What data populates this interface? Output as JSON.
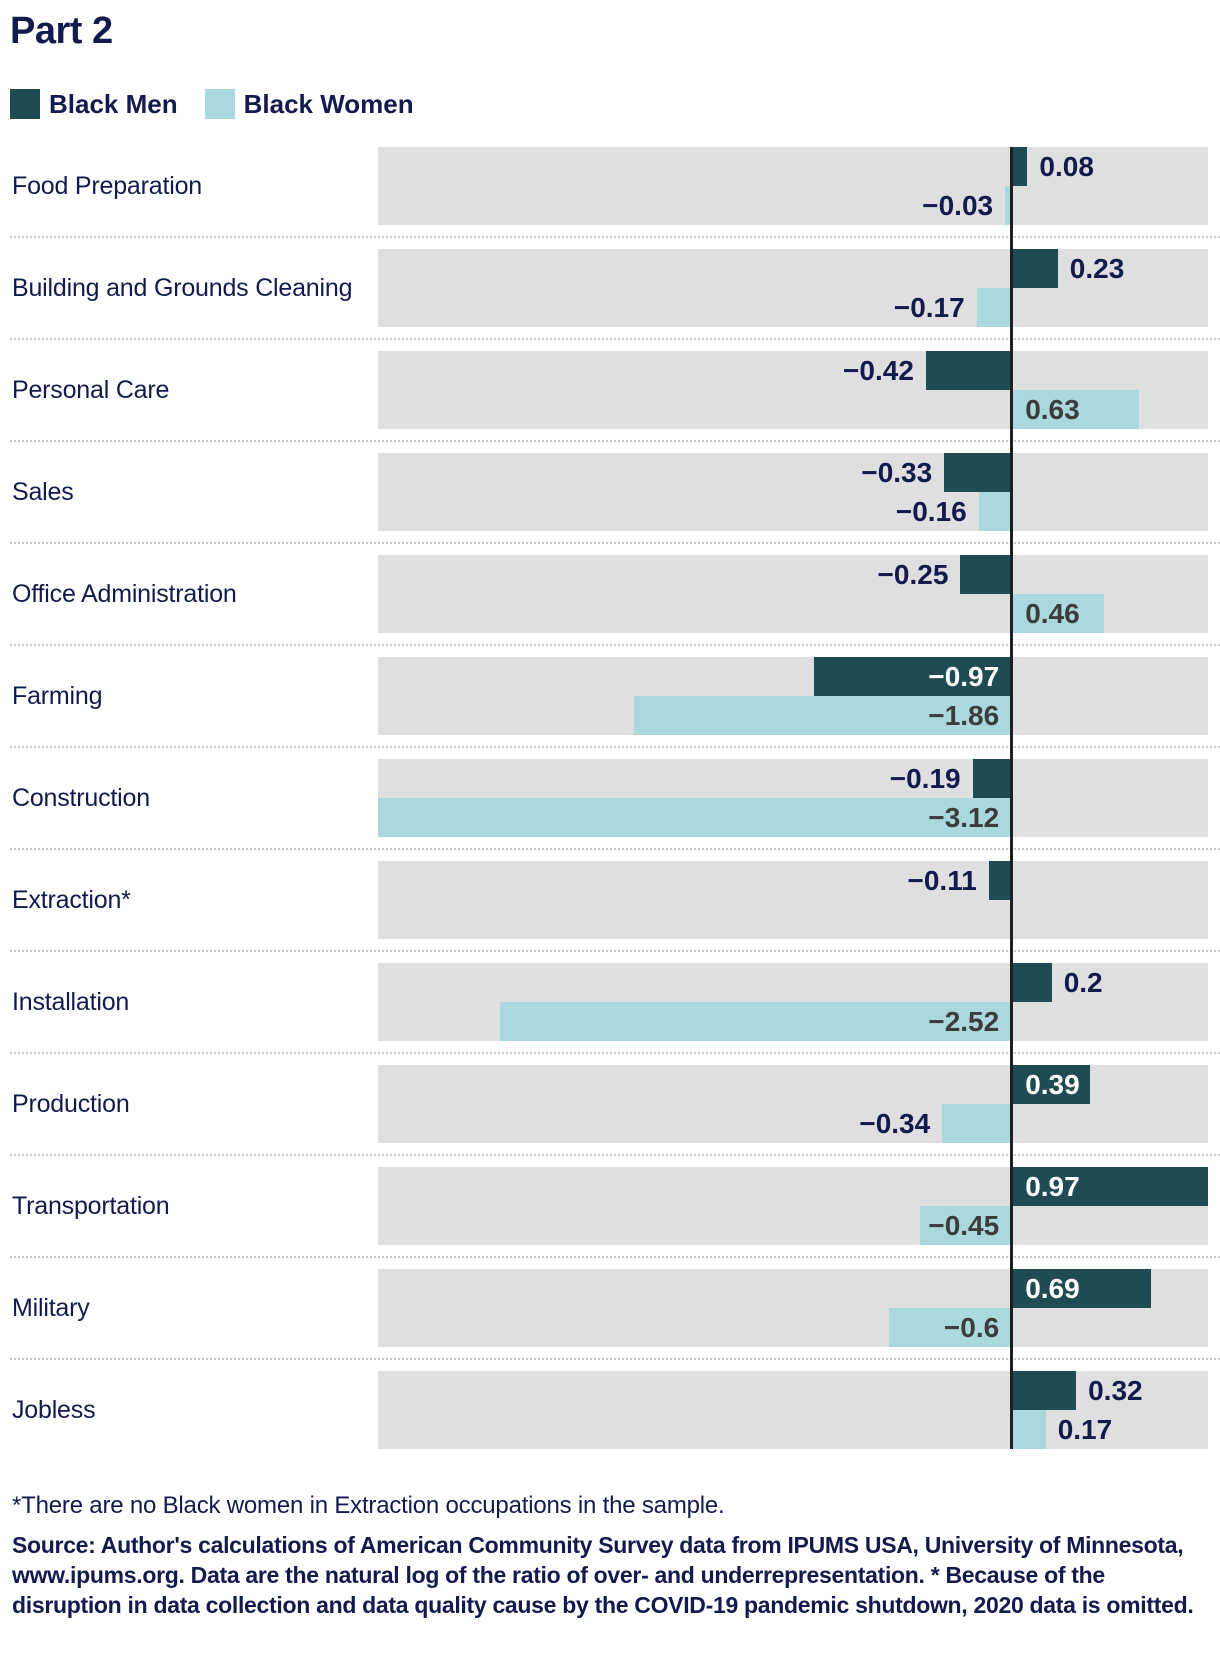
{
  "title": "Part 2",
  "legend": {
    "position": "top-left",
    "items": [
      {
        "label": "Black Men",
        "color": "#1F4B52"
      },
      {
        "label": "Black Women",
        "color": "#A9D9DD"
      }
    ]
  },
  "chart_data": {
    "type": "bar",
    "orientation": "horizontal-diverging",
    "title": "Part 2",
    "xlabel": "",
    "ylabel": "",
    "xlim": [
      -3.12,
      0.97
    ],
    "grid": "off",
    "zero_line": true,
    "row_background_color": "#DFDFDF",
    "categories": [
      "Food Preparation",
      "Building and Grounds Cleaning",
      "Personal Care",
      "Sales",
      "Office Administration",
      "Farming",
      "Construction",
      "Extraction*",
      "Installation",
      "Production",
      "Transportation",
      "Military",
      "Jobless"
    ],
    "series": [
      {
        "name": "Black Men",
        "color": "#1F4B52",
        "values": [
          0.08,
          0.23,
          -0.42,
          -0.33,
          -0.25,
          -0.97,
          -0.19,
          -0.11,
          0.2,
          0.39,
          0.97,
          0.69,
          0.32
        ],
        "labels_inside": [
          false,
          false,
          false,
          false,
          false,
          true,
          false,
          false,
          false,
          true,
          true,
          true,
          false
        ],
        "inside_label_color": "#FFFFFF"
      },
      {
        "name": "Black Women",
        "color": "#A9D9DD",
        "values": [
          -0.03,
          -0.17,
          0.63,
          -0.16,
          0.46,
          -1.86,
          -3.12,
          null,
          -2.52,
          -0.34,
          -0.45,
          -0.6,
          0.17
        ],
        "labels_inside": [
          false,
          false,
          true,
          false,
          true,
          true,
          true,
          false,
          true,
          false,
          true,
          true,
          false
        ],
        "inside_label_color": "#3C3C3C"
      }
    ],
    "outside_label_color": "#131A4E"
  },
  "footnotes": {
    "asterisk": "*There are no Black women in Extraction occupations in the sample.",
    "source": "Source: Author's calculations of American Community Survey data from IPUMS USA, University of Minnesota, www.ipums.org. Data are the natural log of the ratio of over- and underrepresentation. * Because of the disruption in data collection and data quality cause by the COVID-19 pandemic shutdown, 2020 data is omitted."
  },
  "colors": {
    "text_navy": "#131A4E",
    "zero_line": "#1F1F1F",
    "separator": "#C9C9C9",
    "background": "#FFFFFF"
  }
}
